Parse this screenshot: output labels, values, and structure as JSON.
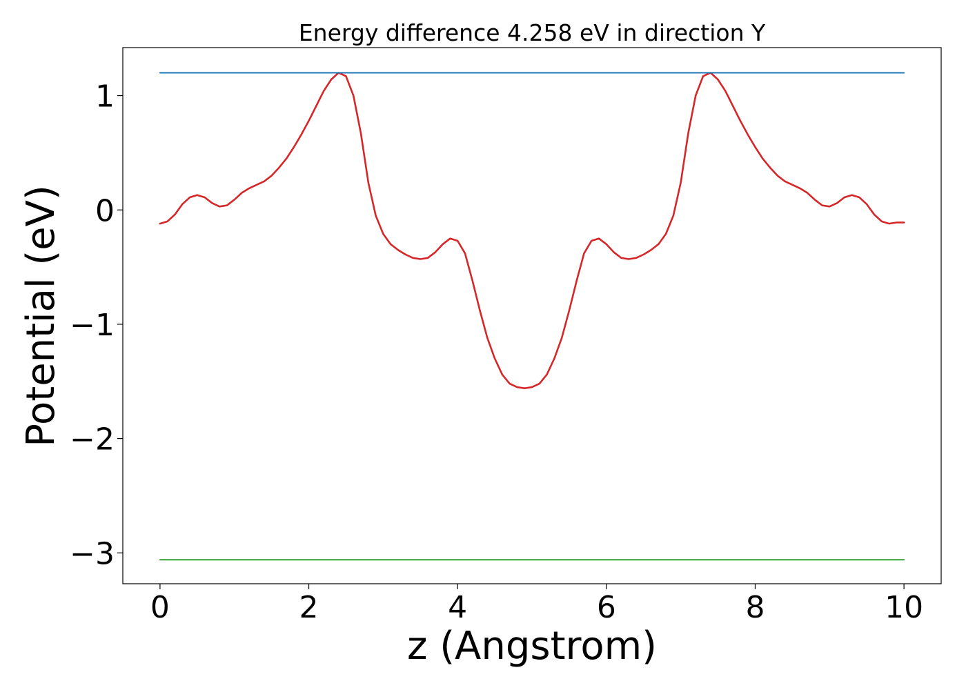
{
  "chart_data": {
    "type": "line",
    "title": "Energy difference 4.258 eV in direction Y",
    "xlabel": "z (Angstrom)",
    "ylabel": "Potential (eV)",
    "xlim": [
      -0.5,
      10.5
    ],
    "ylim": [
      -3.27,
      1.42
    ],
    "xticks": [
      0,
      2,
      4,
      6,
      8,
      10
    ],
    "xtick_labels": [
      "0",
      "2",
      "4",
      "6",
      "8",
      "10"
    ],
    "yticks": [
      1,
      0,
      -1,
      -2,
      -3
    ],
    "ytick_labels": [
      "1",
      "0",
      "−1",
      "−2",
      "−3"
    ],
    "grid": false,
    "legend": "none",
    "series": [
      {
        "color": "#d62728",
        "style": "line",
        "x": [
          0,
          0.1,
          0.2,
          0.3,
          0.4,
          0.5,
          0.6,
          0.7,
          0.8,
          0.9,
          1.0,
          1.1,
          1.2,
          1.3,
          1.4,
          1.5,
          1.6,
          1.7,
          1.8,
          1.9,
          2.0,
          2.1,
          2.2,
          2.3,
          2.4,
          2.5,
          2.6,
          2.7,
          2.8,
          2.9,
          3.0,
          3.1,
          3.2,
          3.3,
          3.4,
          3.5,
          3.6,
          3.7,
          3.8,
          3.9,
          4.0,
          4.1,
          4.2,
          4.3,
          4.4,
          4.5,
          4.6,
          4.7,
          4.8,
          4.9,
          5.0,
          5.1,
          5.2,
          5.3,
          5.4,
          5.5,
          5.6,
          5.7,
          5.8,
          5.9,
          6.0,
          6.1,
          6.2,
          6.3,
          6.4,
          6.5,
          6.6,
          6.7,
          6.8,
          6.9,
          7.0,
          7.1,
          7.2,
          7.3,
          7.4,
          7.5,
          7.6,
          7.7,
          7.8,
          7.9,
          8.0,
          8.1,
          8.2,
          8.3,
          8.4,
          8.5,
          8.6,
          8.7,
          8.8,
          8.9,
          9.0,
          9.1,
          9.2,
          9.3,
          9.4,
          9.5,
          9.6,
          9.7,
          9.8,
          9.9,
          10.0
        ],
        "values": [
          -0.12,
          -0.1,
          -0.04,
          0.05,
          0.11,
          0.13,
          0.11,
          0.06,
          0.03,
          0.04,
          0.09,
          0.15,
          0.19,
          0.22,
          0.25,
          0.3,
          0.37,
          0.45,
          0.55,
          0.66,
          0.78,
          0.91,
          1.04,
          1.14,
          1.2,
          1.17,
          1.0,
          0.67,
          0.24,
          -0.05,
          -0.21,
          -0.3,
          -0.35,
          -0.39,
          -0.42,
          -0.43,
          -0.42,
          -0.37,
          -0.3,
          -0.25,
          -0.27,
          -0.38,
          -0.62,
          -0.88,
          -1.12,
          -1.3,
          -1.44,
          -1.52,
          -1.55,
          -1.56,
          -1.55,
          -1.52,
          -1.44,
          -1.3,
          -1.12,
          -0.88,
          -0.62,
          -0.38,
          -0.27,
          -0.25,
          -0.3,
          -0.37,
          -0.42,
          -0.43,
          -0.42,
          -0.39,
          -0.35,
          -0.3,
          -0.21,
          -0.05,
          0.24,
          0.67,
          1.0,
          1.17,
          1.2,
          1.14,
          1.04,
          0.91,
          0.78,
          0.66,
          0.55,
          0.45,
          0.37,
          0.3,
          0.25,
          0.22,
          0.19,
          0.15,
          0.09,
          0.04,
          0.03,
          0.06,
          0.11,
          0.13,
          0.11,
          0.05,
          -0.04,
          -0.1,
          -0.12,
          -0.11,
          -0.11
        ]
      },
      {
        "color": "#1f77b4",
        "style": "hline",
        "x": [
          0,
          10
        ],
        "values": [
          1.2,
          1.2
        ]
      },
      {
        "color": "#2ca02c",
        "style": "hline",
        "x": [
          0,
          10
        ],
        "values": [
          -3.06,
          -3.06
        ]
      }
    ]
  }
}
